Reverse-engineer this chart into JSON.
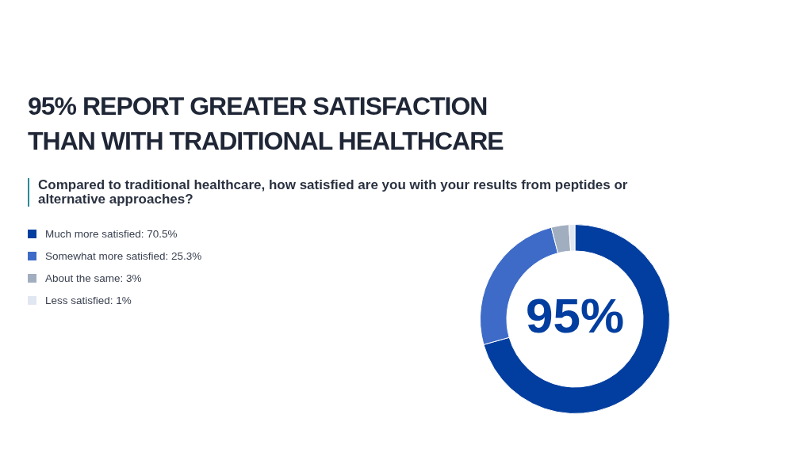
{
  "chart_data": {
    "type": "donut",
    "title": "95% REPORT GREATER SATISFACTION THAN WITH TRADITIONAL HEALTHCARE",
    "subtitle": "Compared to traditional healthcare, how satisfied are you with your results from peptides or alternative approaches?",
    "categories": [
      "Much more satisfied",
      "Somewhat more satisfied",
      "About the same",
      "Less satisfied"
    ],
    "values": [
      70.5,
      25.3,
      3,
      1
    ],
    "value_labels": [
      "70.5%",
      "25.3%",
      "3%",
      "1%"
    ],
    "colors": [
      "#023e9f",
      "#3e6bc8",
      "#a1aec0",
      "#e1e7f0"
    ],
    "annotations": [
      "95%"
    ],
    "legend": "top left"
  }
}
